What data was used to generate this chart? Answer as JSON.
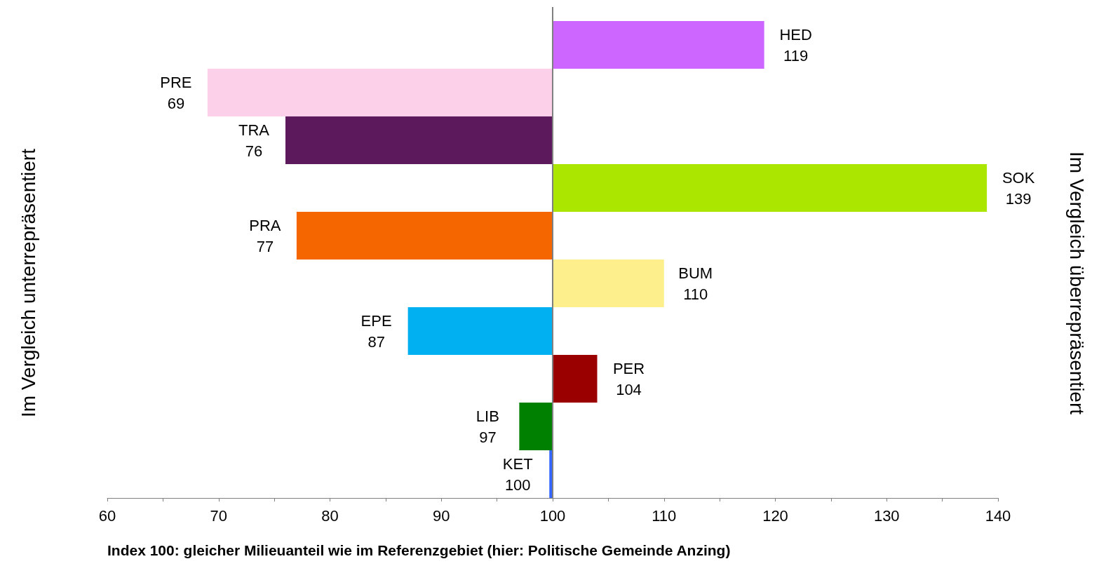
{
  "chart_data": {
    "type": "bar",
    "orientation": "horizontal",
    "xlabel": "Index 100: gleicher Milieuanteil wie im Referenzgebiet (hier: Politische Gemeinde Anzing)",
    "ylabel": "Im Vergleich unterrepräsentiert",
    "y2label": "Im Vergleich überrepräsentiert",
    "categories": [
      "HED",
      "PRE",
      "TRA",
      "SOK",
      "PRA",
      "BUM",
      "EPE",
      "PER",
      "LIB",
      "KET"
    ],
    "base": [
      100,
      100,
      100,
      100,
      100,
      100,
      100,
      100,
      100,
      100
    ],
    "values": [
      19,
      -31,
      -24,
      39,
      -23,
      10,
      -13,
      4,
      -3,
      -0.3
    ],
    "value_labels": [
      "119",
      "69",
      "76",
      "139",
      "77",
      "110",
      "87",
      "104",
      "97",
      "100"
    ],
    "colors": [
      "#cc66ff",
      "#fcd0e8",
      "#5c1a5c",
      "#aae600",
      "#f56600",
      "#fdf08c",
      "#00b0f0",
      "#9b0000",
      "#008000",
      "#3366ff"
    ],
    "xlim": [
      60,
      140
    ],
    "xticks": [
      60,
      {
        "value": 65,
        "label": null
      },
      70,
      {
        "value": 75,
        "label": null
      },
      80,
      {
        "value": 85,
        "label": null
      },
      90,
      {
        "value": 95,
        "label": null
      },
      100,
      {
        "value": 105,
        "label": null
      },
      110,
      {
        "value": 115,
        "label": null
      },
      120,
      {
        "value": 125,
        "label": null
      },
      130,
      {
        "value": 135,
        "label": null
      },
      140
    ],
    "ref_lines": [
      {
        "axis": "x",
        "value": 100,
        "color": "#808080"
      }
    ],
    "tick_labels": "x",
    "grid": false
  }
}
